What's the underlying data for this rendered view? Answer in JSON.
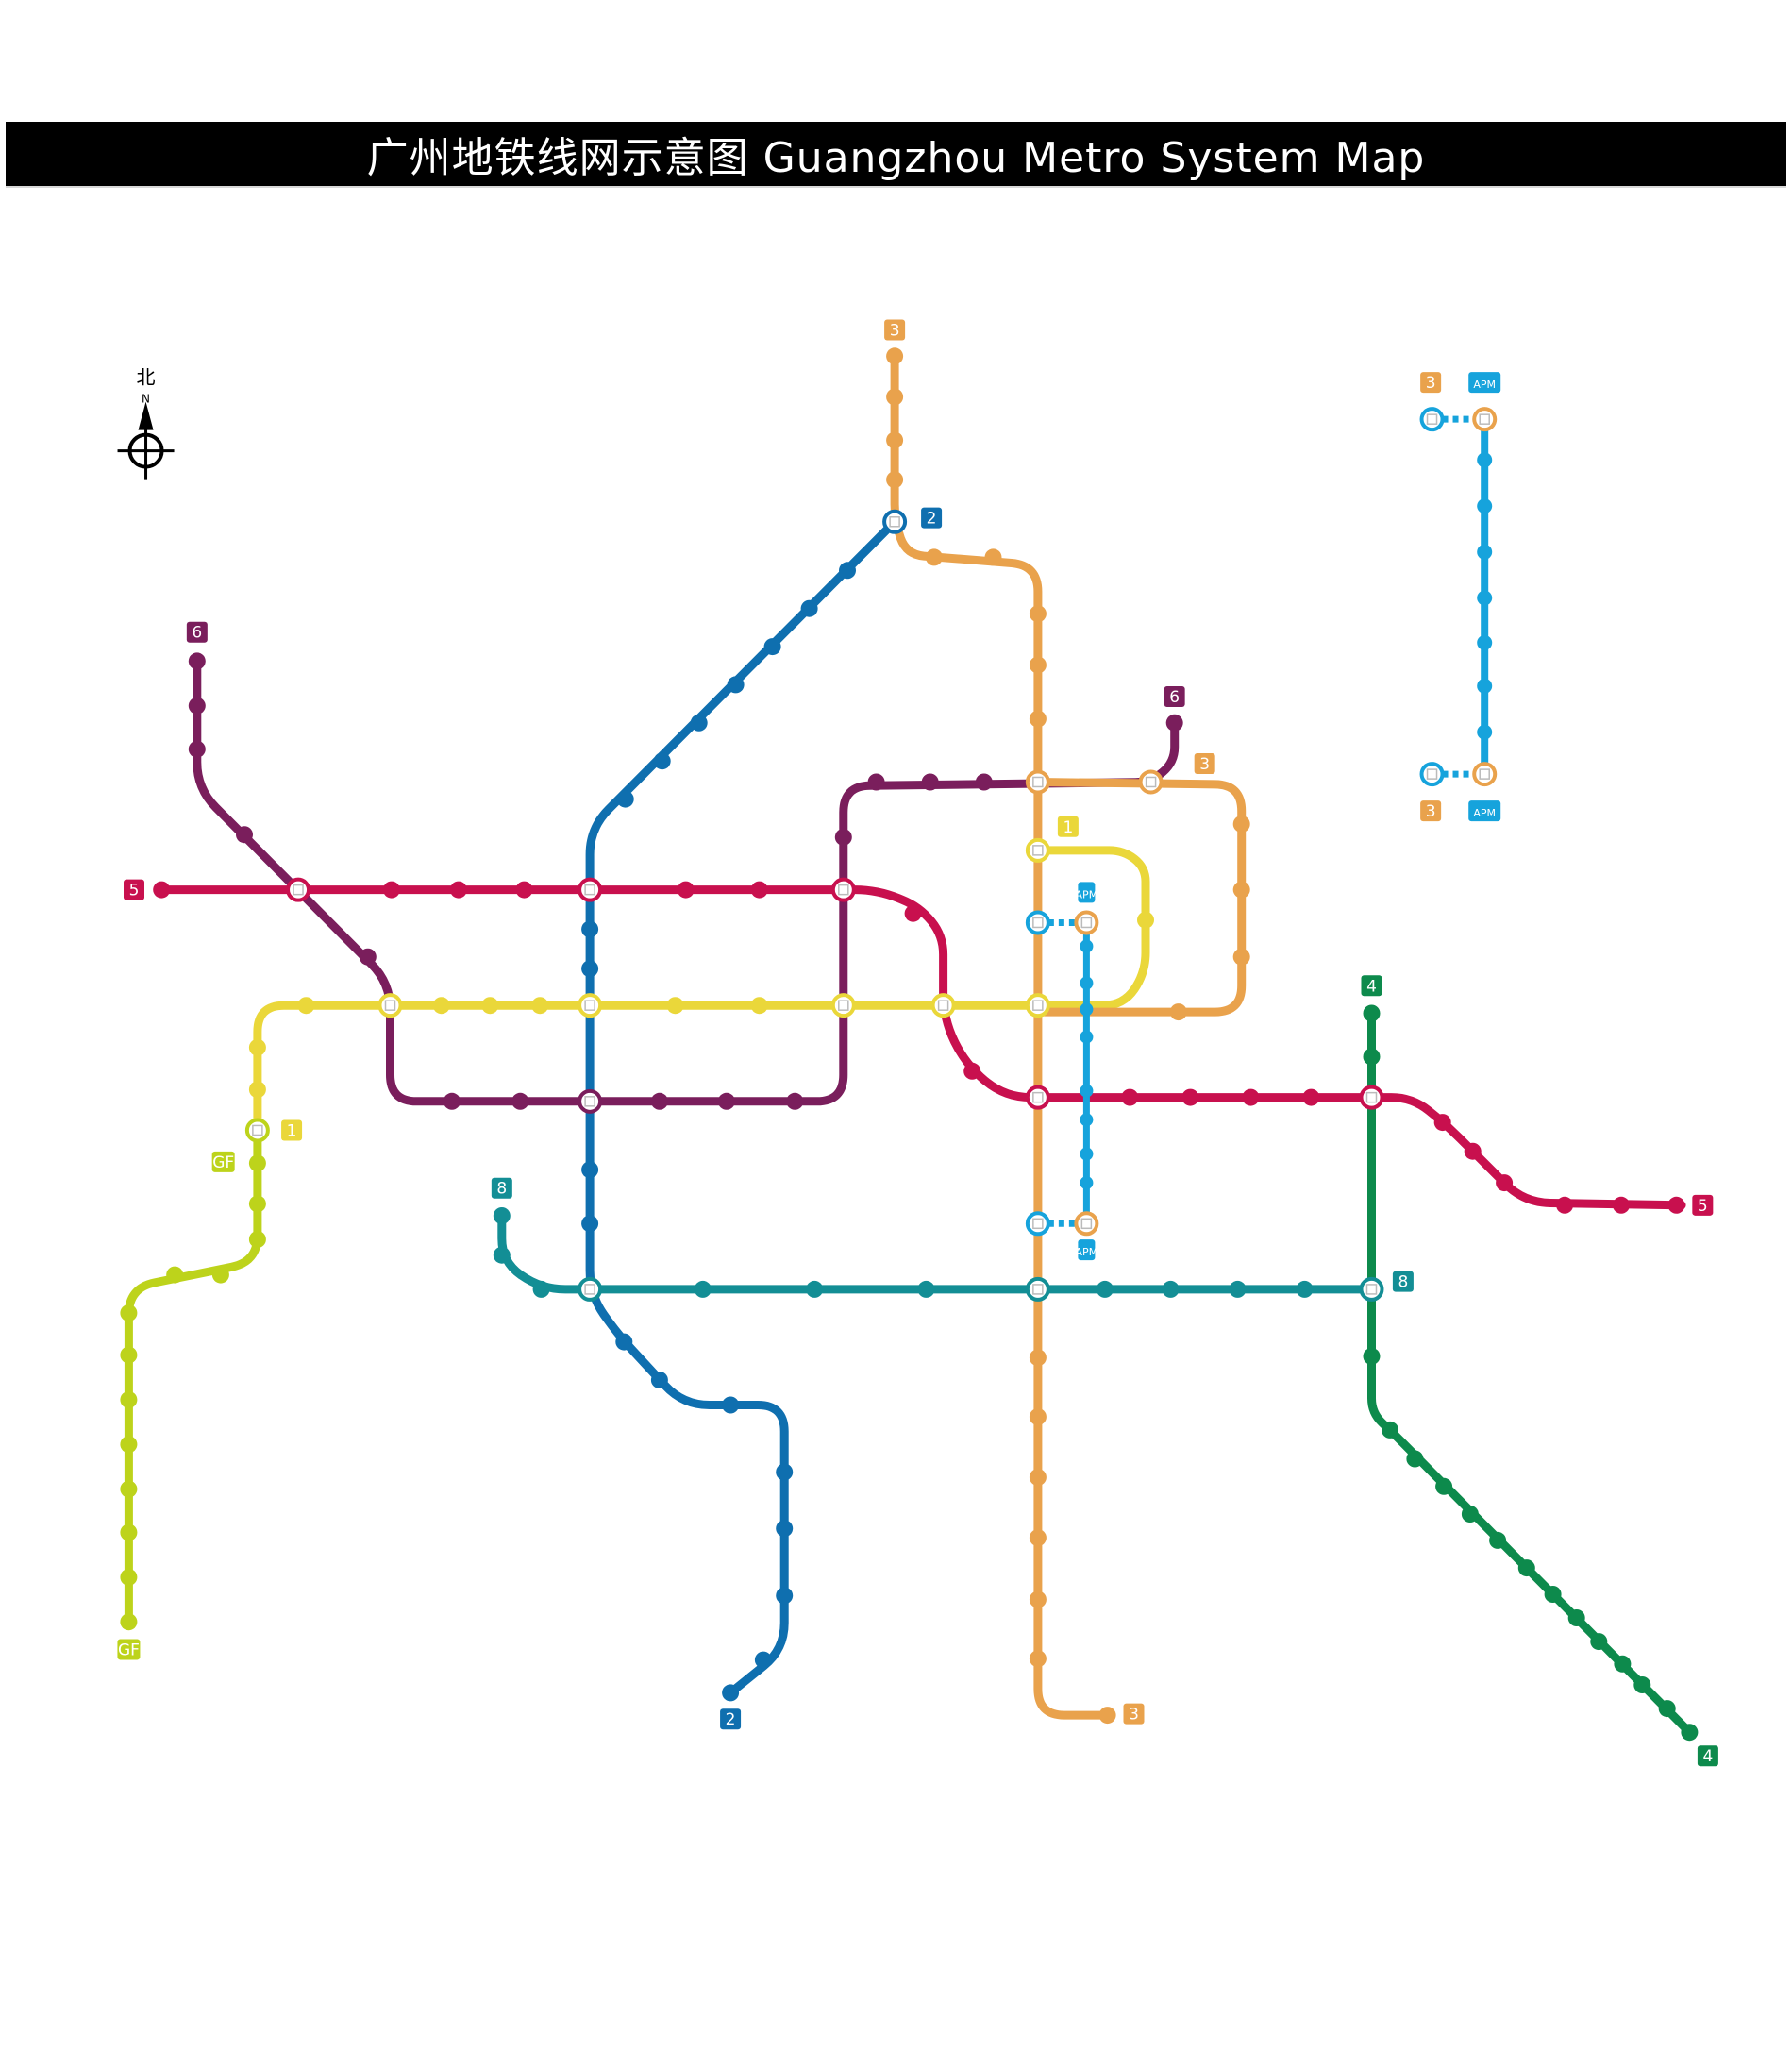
{
  "title": "广州地铁线网示意图 Guangzhou Metro System Map",
  "compass": {
    "zh": "北",
    "en": "N"
  },
  "colors": {
    "line1": "#EAD73A",
    "line2": "#0F6FAF",
    "line3": "#E9A24C",
    "line4": "#0D8A4C",
    "line5": "#C8104E",
    "line6": "#7A1E5C",
    "line8": "#138E95",
    "apm": "#16A3DC",
    "gf": "#BDD31B"
  },
  "lines": [
    {
      "id": "line3",
      "badges": [
        "3",
        "3"
      ]
    },
    {
      "id": "line2",
      "badges": [
        "2",
        "2"
      ]
    },
    {
      "id": "line6",
      "badges": [
        "6",
        "6"
      ]
    },
    {
      "id": "line5",
      "badges": [
        "5",
        "5"
      ]
    },
    {
      "id": "line1",
      "badges": [
        "1",
        "1"
      ]
    },
    {
      "id": "line3_branch",
      "badges": [
        "3"
      ]
    },
    {
      "id": "line4",
      "badges": [
        "4",
        "4"
      ]
    },
    {
      "id": "line8",
      "badges": [
        "8",
        "8"
      ]
    },
    {
      "id": "gf",
      "badges": [
        "GF",
        "GF"
      ]
    },
    {
      "id": "apm",
      "badges": [
        "APM",
        "APM"
      ]
    }
  ],
  "legend": {
    "top": {
      "line3": "3",
      "apm": "APM"
    },
    "bottom": {
      "line3": "3",
      "apm": "APM"
    }
  }
}
